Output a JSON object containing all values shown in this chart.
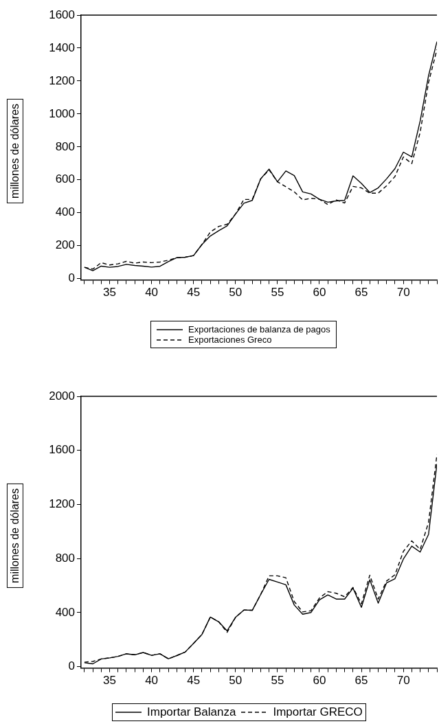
{
  "chart_data": [
    {
      "type": "line",
      "ylabel": "millones de dólares",
      "x": [
        32,
        33,
        34,
        35,
        36,
        37,
        38,
        39,
        40,
        41,
        42,
        43,
        44,
        45,
        46,
        47,
        48,
        49,
        50,
        51,
        52,
        53,
        54,
        55,
        56,
        57,
        58,
        59,
        60,
        61,
        62,
        63,
        64,
        65,
        66,
        67,
        68,
        69,
        70,
        71,
        72,
        73,
        74
      ],
      "series": [
        {
          "name": "Exportaciones de balanza de pagos",
          "color": "#000000",
          "line_style": "solid",
          "values": [
            69,
            48,
            76,
            69,
            74,
            87,
            80,
            76,
            70,
            75,
            103,
            127,
            130,
            140,
            207,
            259,
            291,
            320,
            392,
            458,
            475,
            606,
            665,
            588,
            654,
            626,
            527,
            514,
            482,
            464,
            472,
            475,
            624,
            578,
            523,
            551,
            606,
            668,
            768,
            739,
            957,
            1232,
            1439
          ]
        },
        {
          "name": "Exportaciones Greco",
          "color": "#000000",
          "line_style": "dashed",
          "values": [
            69,
            58,
            97,
            83,
            90,
            105,
            94,
            101,
            97,
            101,
            112,
            127,
            130,
            140,
            207,
            283,
            317,
            330,
            392,
            481,
            481,
            606,
            660,
            588,
            558,
            527,
            478,
            488,
            482,
            450,
            478,
            459,
            560,
            551,
            519,
            519,
            564,
            620,
            739,
            698,
            888,
            1191,
            1391
          ]
        }
      ],
      "xlim": [
        31.6,
        74
      ],
      "ylim": [
        -8,
        1600
      ],
      "xticks": [
        {
          "value": 32,
          "label": null
        },
        {
          "value": 33,
          "label": null
        },
        {
          "value": 34,
          "label": null
        },
        35,
        {
          "value": 36,
          "label": null
        },
        {
          "value": 37,
          "label": null
        },
        {
          "value": 38,
          "label": null
        },
        {
          "value": 39,
          "label": null
        },
        40,
        {
          "value": 41,
          "label": null
        },
        {
          "value": 42,
          "label": null
        },
        {
          "value": 43,
          "label": null
        },
        {
          "value": 44,
          "label": null
        },
        45,
        {
          "value": 46,
          "label": null
        },
        {
          "value": 47,
          "label": null
        },
        {
          "value": 48,
          "label": null
        },
        {
          "value": 49,
          "label": null
        },
        50,
        {
          "value": 51,
          "label": null
        },
        {
          "value": 52,
          "label": null
        },
        {
          "value": 53,
          "label": null
        },
        {
          "value": 54,
          "label": null
        },
        55,
        {
          "value": 56,
          "label": null
        },
        {
          "value": 57,
          "label": null
        },
        {
          "value": 58,
          "label": null
        },
        {
          "value": 59,
          "label": null
        },
        60,
        {
          "value": 61,
          "label": null
        },
        {
          "value": 62,
          "label": null
        },
        {
          "value": 63,
          "label": null
        },
        {
          "value": 64,
          "label": null
        },
        65,
        {
          "value": 66,
          "label": null
        },
        {
          "value": 67,
          "label": null
        },
        {
          "value": 68,
          "label": null
        },
        {
          "value": 69,
          "label": null
        },
        70,
        {
          "value": 71,
          "label": null
        },
        {
          "value": 72,
          "label": null
        },
        {
          "value": 73,
          "label": null
        },
        {
          "value": 74,
          "label": null
        }
      ],
      "yticks": [
        0,
        200,
        400,
        600,
        800,
        1000,
        1200,
        1400,
        1600
      ],
      "grid": false,
      "legend": "bottom",
      "marker": "none"
    },
    {
      "type": "line",
      "ylabel": "millones de dólares",
      "x": [
        32,
        33,
        34,
        35,
        36,
        37,
        38,
        39,
        40,
        41,
        42,
        43,
        44,
        45,
        46,
        47,
        48,
        49,
        50,
        51,
        52,
        53,
        54,
        55,
        56,
        57,
        58,
        59,
        60,
        61,
        62,
        63,
        64,
        65,
        66,
        67,
        68,
        69,
        70,
        71,
        72,
        73,
        74
      ],
      "series": [
        {
          "name": "Importar Balanza",
          "color": "#000000",
          "line_style": "solid",
          "values": [
            29,
            21,
            57,
            65,
            76,
            95,
            88,
            105,
            84,
            95,
            58,
            82,
            108,
            172,
            238,
            367,
            332,
            265,
            365,
            419,
            417,
            534,
            646,
            626,
            606,
            456,
            388,
            401,
            494,
            531,
            500,
            500,
            581,
            439,
            643,
            470,
            620,
            651,
            796,
            892,
            848,
            979,
            1500
          ]
        },
        {
          "name": "Importar GRECO",
          "color": "#000000",
          "line_style": "dashed",
          "values": [
            33,
            39,
            57,
            65,
            76,
            95,
            88,
            105,
            84,
            95,
            58,
            82,
            108,
            172,
            238,
            367,
            332,
            254,
            365,
            419,
            417,
            534,
            672,
            672,
            658,
            482,
            405,
            414,
            508,
            555,
            543,
            517,
            586,
            465,
            677,
            500,
            634,
            680,
            853,
            931,
            867,
            1068,
            1570
          ]
        }
      ],
      "xlim": [
        31.6,
        74
      ],
      "ylim": [
        -10,
        2000
      ],
      "xticks": [
        {
          "value": 32,
          "label": null
        },
        {
          "value": 33,
          "label": null
        },
        {
          "value": 34,
          "label": null
        },
        35,
        {
          "value": 36,
          "label": null
        },
        {
          "value": 37,
          "label": null
        },
        {
          "value": 38,
          "label": null
        },
        {
          "value": 39,
          "label": null
        },
        40,
        {
          "value": 41,
          "label": null
        },
        {
          "value": 42,
          "label": null
        },
        {
          "value": 43,
          "label": null
        },
        {
          "value": 44,
          "label": null
        },
        45,
        {
          "value": 46,
          "label": null
        },
        {
          "value": 47,
          "label": null
        },
        {
          "value": 48,
          "label": null
        },
        {
          "value": 49,
          "label": null
        },
        50,
        {
          "value": 51,
          "label": null
        },
        {
          "value": 52,
          "label": null
        },
        {
          "value": 53,
          "label": null
        },
        {
          "value": 54,
          "label": null
        },
        55,
        {
          "value": 56,
          "label": null
        },
        {
          "value": 57,
          "label": null
        },
        {
          "value": 58,
          "label": null
        },
        {
          "value": 59,
          "label": null
        },
        60,
        {
          "value": 61,
          "label": null
        },
        {
          "value": 62,
          "label": null
        },
        {
          "value": 63,
          "label": null
        },
        {
          "value": 64,
          "label": null
        },
        65,
        {
          "value": 66,
          "label": null
        },
        {
          "value": 67,
          "label": null
        },
        {
          "value": 68,
          "label": null
        },
        {
          "value": 69,
          "label": null
        },
        70,
        {
          "value": 71,
          "label": null
        },
        {
          "value": 72,
          "label": null
        },
        {
          "value": 73,
          "label": null
        },
        {
          "value": 74,
          "label": null
        }
      ],
      "yticks": [
        0,
        400,
        800,
        1200,
        1600,
        2000
      ],
      "grid": false,
      "legend": "bottom",
      "marker": "none"
    }
  ]
}
